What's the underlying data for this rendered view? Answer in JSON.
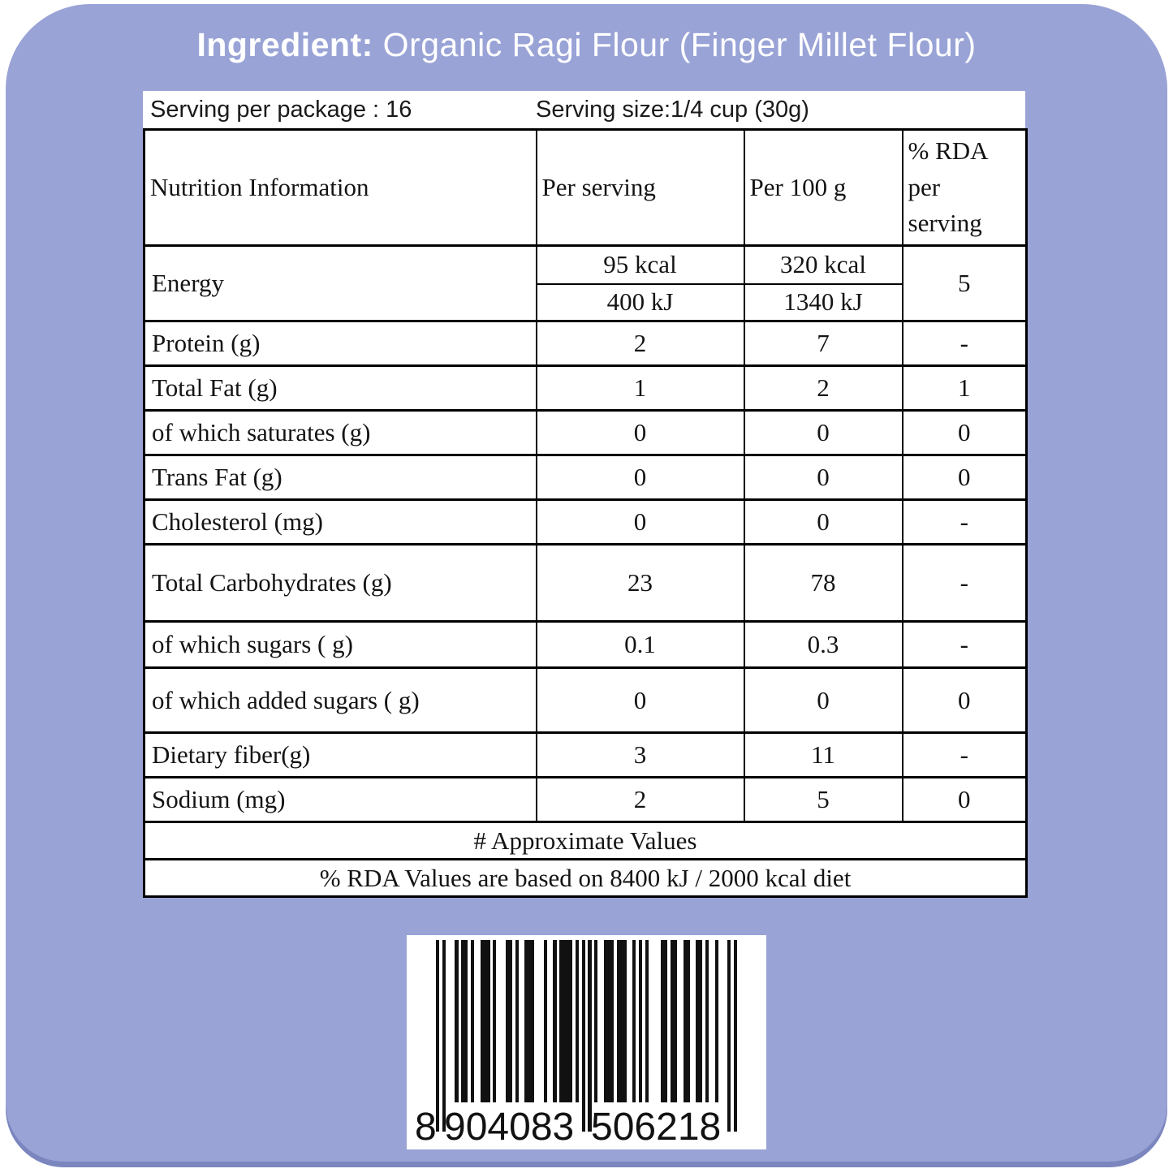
{
  "header": {
    "label_bold": "Ingredient:",
    "label_rest": " Organic Ragi Flour (Finger Millet Flour)"
  },
  "serving": {
    "per_package": "Serving per package : 16",
    "size": "Serving size:1/4 cup (30g)"
  },
  "table": {
    "columns": [
      "Nutrition Information",
      "Per serving",
      "Per 100 g",
      "% RDA per serving"
    ],
    "energy": {
      "label": "Energy",
      "kcal_serving": "95 kcal",
      "kcal_100g": "320 kcal",
      "kj_serving": "400 kJ",
      "kj_100g": "1340 kJ",
      "rda": "5"
    },
    "rows": [
      {
        "label": "Protein (g)",
        "per_serving": "2",
        "per_100g": "7",
        "rda": "-"
      },
      {
        "label": "Total Fat (g)",
        "per_serving": "1",
        "per_100g": "2",
        "rda": "1"
      },
      {
        "label": "of which saturates (g)",
        "per_serving": "0",
        "per_100g": "0",
        "rda": "0"
      },
      {
        "label": "Trans Fat (g)",
        "per_serving": "0",
        "per_100g": "0",
        "rda": "0"
      },
      {
        "label": "Cholesterol (mg)",
        "per_serving": "0",
        "per_100g": "0",
        "rda": "-"
      },
      {
        "label": "Total Carbohydrates (g)",
        "per_serving": "23",
        "per_100g": "78",
        "rda": "-"
      },
      {
        "label": "of which sugars ( g)",
        "per_serving": "0.1",
        "per_100g": "0.3",
        "rda": "-"
      },
      {
        "label": "of which added sugars ( g)",
        "per_serving": "0",
        "per_100g": "0",
        "rda": "0"
      },
      {
        "label": "Dietary fiber(g)",
        "per_serving": "3",
        "per_100g": "11",
        "rda": "-"
      },
      {
        "label": "Sodium  (mg)",
        "per_serving": "2",
        "per_100g": "5",
        "rda": "0"
      }
    ],
    "footnotes": [
      "# Approximate Values",
      "% RDA Values are based on 8400 kJ / 2000 kcal diet"
    ]
  },
  "barcode": {
    "value": "8904083506218",
    "left_digit": "8",
    "group1": "904083",
    "group2": "506218",
    "modules": "10100010110100111010001101001110001001011110101010100111011100101010000110110011001101001000101"
  },
  "colors": {
    "card_background": "#99a3d6",
    "card_bottom_edge": "#7b86bf",
    "title_text": "#ffffff",
    "table_background": "#ffffff",
    "table_border": "#000000"
  }
}
